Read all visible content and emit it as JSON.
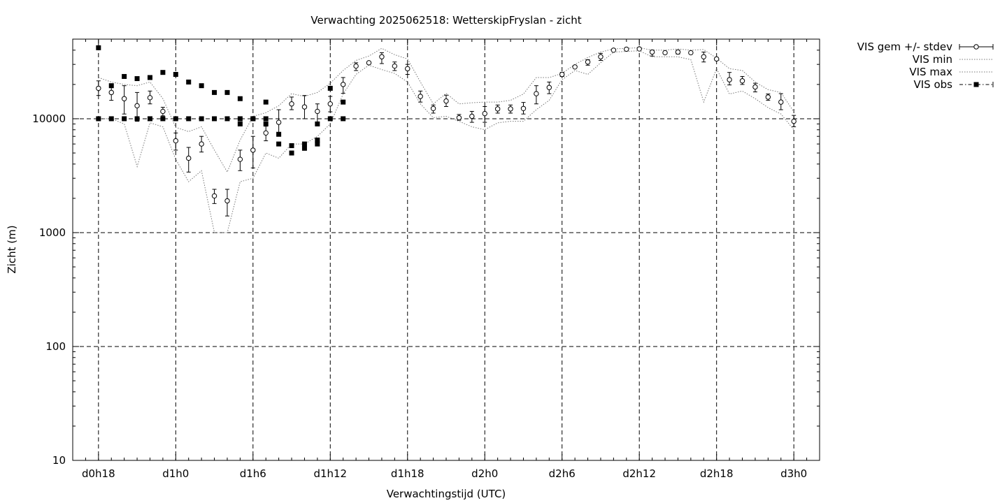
{
  "chart_data": {
    "type": "scatter",
    "title": "Verwachting 2025062518: WetterskipFryslan - zicht",
    "xlabel": "Verwachtingstijd (UTC)",
    "ylabel": "Zicht (m)",
    "y_scale": "log",
    "ylim": [
      10,
      50000
    ],
    "xlim": [
      -2,
      56
    ],
    "grid": true,
    "legend_position": "top-right-outside",
    "x_unit": "hours since d0h18",
    "x_ticks": [
      {
        "x": 0,
        "label": "d0h18"
      },
      {
        "x": 6,
        "label": "d1h0"
      },
      {
        "x": 12,
        "label": "d1h6"
      },
      {
        "x": 18,
        "label": "d1h12"
      },
      {
        "x": 24,
        "label": "d1h18"
      },
      {
        "x": 30,
        "label": "d2h0"
      },
      {
        "x": 36,
        "label": "d2h6"
      },
      {
        "x": 42,
        "label": "d2h12"
      },
      {
        "x": 48,
        "label": "d2h18"
      },
      {
        "x": 54,
        "label": "d3h0"
      }
    ],
    "y_ticks": [
      {
        "y": 10,
        "label": "10"
      },
      {
        "y": 100,
        "label": "100"
      },
      {
        "y": 1000,
        "label": "1000"
      },
      {
        "y": 10000,
        "label": "10000"
      }
    ],
    "legend": [
      {
        "label": "VIS gem +/- stdev",
        "style": "errorbar-circle"
      },
      {
        "label": "VIS min",
        "style": "dotted"
      },
      {
        "label": "VIS max",
        "style": "dotted"
      },
      {
        "label": "VIS obs",
        "style": "dashdot-square"
      }
    ],
    "series": [
      {
        "name": "VIS gem +/- stdev",
        "x": [
          0,
          1,
          2,
          3,
          4,
          5,
          6,
          7,
          8,
          9,
          10,
          11,
          12,
          13,
          14,
          15,
          16,
          17,
          18,
          19,
          20,
          21,
          22,
          23,
          24,
          25,
          26,
          27,
          28,
          29,
          30,
          31,
          32,
          33,
          34,
          35,
          36,
          37,
          38,
          39,
          40,
          41,
          42,
          43,
          44,
          45,
          46,
          47,
          48,
          49,
          50,
          51,
          52,
          53,
          54
        ],
        "values": [
          18500,
          17000,
          15000,
          13000,
          15300,
          11600,
          6400,
          4500,
          6000,
          2100,
          1900,
          4400,
          5300,
          7500,
          9300,
          13500,
          12700,
          11600,
          13500,
          20000,
          29000,
          31000,
          35000,
          29000,
          27500,
          15700,
          12300,
          14300,
          10200,
          10500,
          11100,
          12200,
          12200,
          12300,
          16600,
          18800,
          24500,
          28500,
          31500,
          35000,
          40000,
          40800,
          41000,
          38500,
          38000,
          38500,
          38000,
          35000,
          33500,
          22000,
          21500,
          19000,
          15500,
          14000,
          9500
        ],
        "low": [
          16000,
          14500,
          11000,
          9500,
          13500,
          10600,
          5300,
          3400,
          5100,
          1800,
          1400,
          3500,
          3700,
          6400,
          7400,
          12000,
          10000,
          8700,
          11500,
          16700,
          26500,
          31000,
          30500,
          26500,
          24500,
          14000,
          11200,
          12800,
          9700,
          9300,
          9300,
          11200,
          11200,
          11000,
          13500,
          16600,
          23500,
          28500,
          29500,
          32500,
          40000,
          40800,
          41000,
          35500,
          38000,
          37000,
          38000,
          31500,
          33000,
          19800,
          20000,
          17200,
          14500,
          12000,
          8500
        ],
        "high": [
          21500,
          19500,
          19500,
          17000,
          17500,
          12600,
          7500,
          5600,
          7000,
          2400,
          2400,
          5300,
          7000,
          8600,
          12000,
          15500,
          16000,
          13500,
          15700,
          23000,
          31000,
          31000,
          38000,
          31500,
          30000,
          17500,
          13200,
          16100,
          10900,
          11600,
          12800,
          13200,
          13200,
          13900,
          19500,
          21000,
          25500,
          28500,
          33000,
          37500,
          40000,
          40800,
          41000,
          40000,
          38000,
          40000,
          38000,
          38500,
          34000,
          25500,
          23500,
          20500,
          16500,
          16600,
          10700
        ]
      },
      {
        "name": "VIS min",
        "x": [
          0,
          1,
          2,
          3,
          4,
          5,
          6,
          7,
          8,
          9,
          10,
          11,
          12,
          13,
          14,
          15,
          16,
          17,
          18,
          19,
          20,
          21,
          22,
          23,
          24,
          25,
          26,
          27,
          28,
          29,
          30,
          31,
          32,
          33,
          34,
          35,
          36,
          37,
          38,
          39,
          40,
          41,
          42,
          43,
          44,
          45,
          46,
          47,
          48,
          49,
          50,
          51,
          52,
          53,
          54
        ],
        "values": [
          10000,
          10000,
          9000,
          3800,
          9200,
          8500,
          4400,
          2800,
          3500,
          1000,
          1000,
          2800,
          3000,
          5000,
          4500,
          6000,
          6000,
          7000,
          9000,
          16500,
          24500,
          29500,
          27000,
          25000,
          21000,
          13500,
          10200,
          10500,
          9500,
          8500,
          8000,
          9200,
          9500,
          9500,
          12000,
          14500,
          22000,
          26500,
          24500,
          31000,
          38500,
          39000,
          39500,
          35000,
          35000,
          35000,
          33000,
          14000,
          27500,
          16500,
          17500,
          15000,
          12500,
          11000,
          8000
        ]
      },
      {
        "name": "VIS max",
        "x": [
          0,
          1,
          2,
          3,
          4,
          5,
          6,
          7,
          8,
          9,
          10,
          11,
          12,
          13,
          14,
          15,
          16,
          17,
          18,
          19,
          20,
          21,
          22,
          23,
          24,
          25,
          26,
          27,
          28,
          29,
          30,
          31,
          32,
          33,
          34,
          35,
          36,
          37,
          38,
          39,
          40,
          41,
          42,
          43,
          44,
          45,
          46,
          47,
          48,
          49,
          50,
          51,
          52,
          53,
          54
        ],
        "values": [
          23000,
          21000,
          20000,
          19500,
          21000,
          15000,
          8400,
          7700,
          8500,
          5300,
          3400,
          6500,
          10500,
          11300,
          13000,
          16600,
          15700,
          17000,
          20500,
          26500,
          32500,
          35500,
          41500,
          36500,
          33500,
          21000,
          13500,
          16700,
          13500,
          13800,
          14000,
          14000,
          14500,
          16500,
          23000,
          23000,
          25000,
          30000,
          34500,
          38500,
          41000,
          41500,
          42000,
          40000,
          40000,
          41000,
          40000,
          40500,
          34000,
          27500,
          26500,
          21000,
          18000,
          17000,
          11500
        ]
      },
      {
        "name": "VIS obs",
        "x": [
          0,
          0,
          1,
          1,
          2,
          2,
          3,
          3,
          4,
          4,
          5,
          5,
          6,
          6,
          7,
          7,
          8,
          8,
          9,
          9,
          10,
          10,
          11,
          11,
          11,
          12,
          12,
          13,
          13,
          13,
          14,
          14,
          15,
          15,
          16,
          16,
          17,
          17,
          17,
          18,
          18,
          19,
          19
        ],
        "values": [
          42000,
          10000,
          19500,
          10000,
          23500,
          10000,
          22500,
          10000,
          23000,
          10000,
          25500,
          10000,
          24500,
          10000,
          21000,
          10000,
          19500,
          10000,
          17000,
          10000,
          17000,
          10000,
          15000,
          10000,
          9000,
          10000,
          10000,
          14000,
          10000,
          9000,
          7300,
          6000,
          5800,
          5000,
          6000,
          5500,
          6500,
          6000,
          9000,
          18500,
          10000,
          14000,
          10000
        ]
      }
    ]
  }
}
